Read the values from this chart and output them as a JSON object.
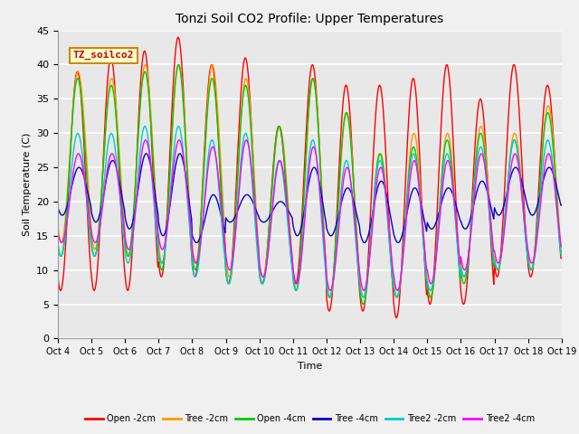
{
  "title": "Tonzi Soil CO2 Profile: Upper Temperatures",
  "xlabel": "Time",
  "ylabel": "Soil Temperature (C)",
  "ylim": [
    0,
    45
  ],
  "background_color": "#f0f0f0",
  "plot_bg_color": "#e8e8e8",
  "grid_color": "white",
  "annotation_text": "TZ_soilco2",
  "annotation_bg": "#ffffcc",
  "annotation_border": "#cc8800",
  "x_tick_labels": [
    "Oct 4",
    "Oct 5",
    "Oct 6",
    "Oct 7",
    "Oct 8",
    "Oct 9",
    "Oct 10",
    "Oct 11",
    "Oct 12",
    "Oct 13",
    "Oct 14",
    "Oct 15",
    "Oct 16",
    "Oct 17",
    "Oct 18",
    "Oct 19"
  ],
  "series_colors": [
    "#ff0000",
    "#ff9900",
    "#00cc00",
    "#0000cc",
    "#00cccc",
    "#ff00ff"
  ],
  "series_labels": [
    "Open -2cm",
    "Tree -2cm",
    "Open -4cm",
    "Tree -4cm",
    "Tree2 -2cm",
    "Tree2 -4cm"
  ],
  "days": 15,
  "open2_peaks": [
    39,
    41,
    42,
    44,
    40,
    41,
    31,
    40,
    37,
    37,
    38,
    40,
    35,
    40,
    37
  ],
  "open2_troughs": [
    7,
    7,
    7,
    9,
    9,
    8,
    8,
    8,
    4,
    4,
    3,
    5,
    5,
    9,
    9
  ],
  "tree2_peaks": [
    39,
    38,
    40,
    40,
    40,
    38,
    31,
    38,
    33,
    27,
    30,
    30,
    31,
    30,
    34
  ],
  "tree2_troughs": [
    14,
    13,
    12,
    11,
    11,
    9,
    9,
    7,
    6,
    6,
    6,
    6,
    9,
    10,
    10
  ],
  "open4_peaks": [
    38,
    37,
    39,
    40,
    38,
    37,
    31,
    38,
    33,
    27,
    28,
    29,
    30,
    29,
    33
  ],
  "open4_troughs": [
    12,
    12,
    12,
    10,
    10,
    8,
    8,
    7,
    6,
    5,
    6,
    6,
    8,
    10,
    10
  ],
  "tree4_peaks": [
    25,
    26,
    27,
    27,
    21,
    21,
    20,
    25,
    22,
    23,
    22,
    22,
    23,
    25,
    25
  ],
  "tree4_troughs": [
    18,
    17,
    16,
    15,
    14,
    17,
    17,
    15,
    15,
    14,
    14,
    16,
    16,
    18,
    18
  ],
  "t2_2_peaks": [
    30,
    30,
    31,
    31,
    29,
    30,
    26,
    29,
    26,
    26,
    27,
    27,
    28,
    29,
    29
  ],
  "t2_2_troughs": [
    12,
    12,
    11,
    11,
    9,
    8,
    8,
    7,
    6,
    6,
    6,
    7,
    9,
    10,
    10
  ],
  "t2_4_peaks": [
    27,
    27,
    29,
    29,
    28,
    29,
    26,
    28,
    25,
    25,
    26,
    26,
    27,
    27,
    27
  ],
  "t2_4_troughs": [
    14,
    14,
    13,
    13,
    11,
    10,
    9,
    8,
    7,
    7,
    7,
    8,
    10,
    11,
    11
  ]
}
